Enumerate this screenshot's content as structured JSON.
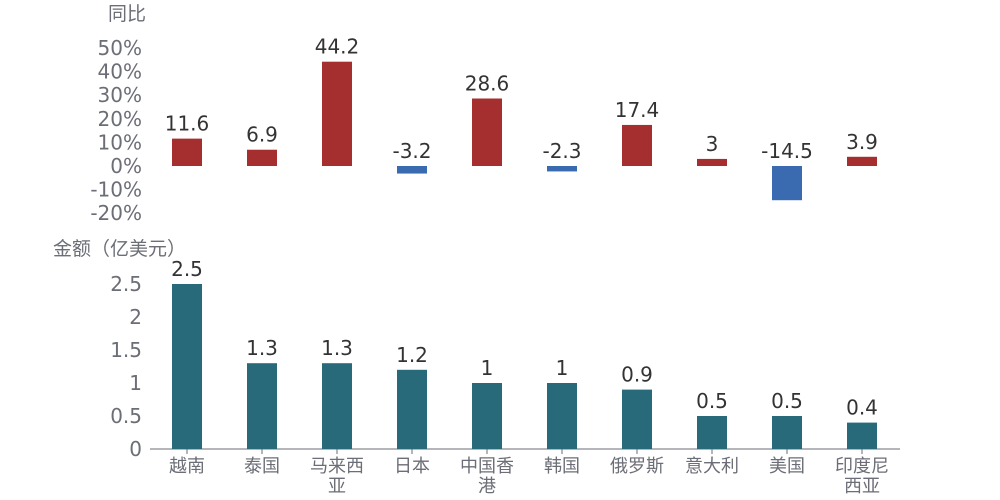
{
  "colors": {
    "positive": "#a52f2f",
    "negative": "#3a6bb0",
    "amount": "#286a7a",
    "axis": "#6b6e76"
  },
  "chart_data": [
    {
      "type": "bar",
      "ylabel": "同比",
      "categories": [
        "越南",
        "泰国",
        "马来西亚",
        "日本",
        "中国香港",
        "韩国",
        "俄罗斯",
        "意大利",
        "美国",
        "印度尼西亚"
      ],
      "values": [
        11.6,
        6.9,
        44.2,
        -3.2,
        28.6,
        -2.3,
        17.4,
        3,
        -14.5,
        3.9
      ],
      "ylim": [
        -20,
        50
      ],
      "yticks": [
        "50%",
        "40%",
        "30%",
        "20%",
        "10%",
        "0%",
        "-10%",
        "-20%"
      ],
      "grid": false
    },
    {
      "type": "bar",
      "ylabel": "金额（亿美元）",
      "categories": [
        "越南",
        "泰国",
        "马来西亚",
        "日本",
        "中国香港",
        "韩国",
        "俄罗斯",
        "意大利",
        "美国",
        "印度尼西亚"
      ],
      "category_lines": [
        [
          "越南"
        ],
        [
          "泰国"
        ],
        [
          "马来西",
          "亚"
        ],
        [
          "日本"
        ],
        [
          "中国香",
          "港"
        ],
        [
          "韩国"
        ],
        [
          "俄罗斯"
        ],
        [
          "意大利"
        ],
        [
          "美国"
        ],
        [
          "印度尼",
          "西亚"
        ]
      ],
      "values": [
        2.5,
        1.3,
        1.3,
        1.2,
        1,
        1,
        0.9,
        0.5,
        0.5,
        0.4
      ],
      "ylim": [
        0,
        2.5
      ],
      "yticks": [
        "2.5",
        "2",
        "1.5",
        "1",
        "0.5",
        "0"
      ],
      "grid": false
    }
  ]
}
